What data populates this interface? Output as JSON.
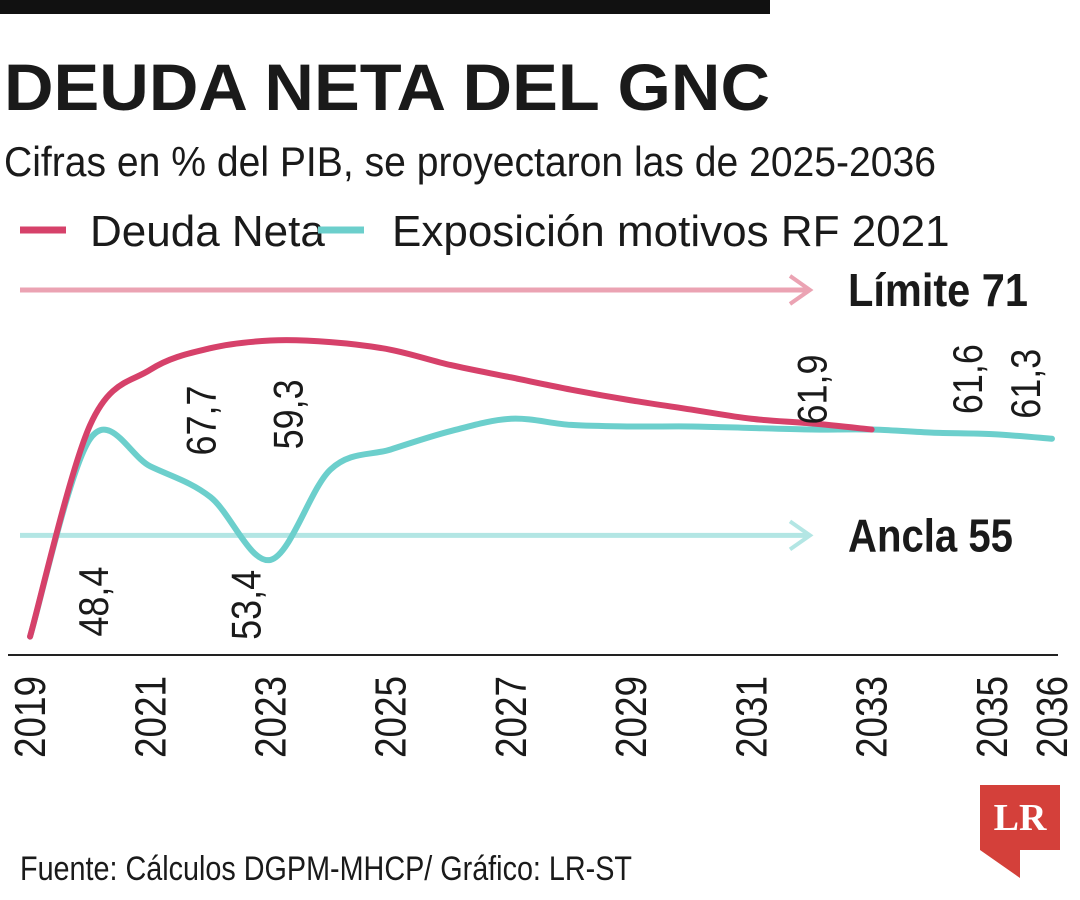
{
  "chart_data": {
    "type": "line",
    "title": "DEUDA NETA DEL GNC",
    "subtitle": "Cifras en % del PIB, se proyectaron las de 2025-2036",
    "x": [
      2019,
      2020,
      2021,
      2022,
      2023,
      2024,
      2025,
      2026,
      2027,
      2028,
      2029,
      2030,
      2031,
      2032,
      2033,
      2034,
      2035,
      2036
    ],
    "xlim": [
      2018.5,
      2036.3
    ],
    "xticks": [
      2019,
      2021,
      2023,
      2025,
      2027,
      2029,
      2031,
      2033,
      2035,
      2036
    ],
    "ylim": [
      47.2,
      72.3
    ],
    "series": [
      {
        "name": "Deuda Neta",
        "color": "#d6416a",
        "values": [
          48.4,
          62.2,
          65.8,
          67.2,
          67.7,
          67.6,
          67.1,
          66.1,
          65.3,
          64.5,
          63.8,
          63.2,
          62.6,
          62.3,
          61.9,
          null,
          null,
          null
        ],
        "value_labels": [
          "48,4",
          null,
          null,
          null,
          "67,7",
          null,
          null,
          null,
          null,
          null,
          null,
          null,
          null,
          null,
          "61,9",
          null,
          null,
          null
        ]
      },
      {
        "name": "Exposición motivos RF 2021",
        "color": "#6ccfcc",
        "values": [
          48.4,
          61.3,
          59.5,
          57.5,
          53.4,
          59.3,
          60.6,
          61.8,
          62.6,
          62.2,
          62.1,
          62.1,
          62.0,
          61.9,
          61.9,
          61.7,
          61.6,
          61.3
        ],
        "value_labels": [
          null,
          null,
          null,
          null,
          "53,4",
          "59,3",
          null,
          null,
          null,
          null,
          null,
          null,
          null,
          null,
          null,
          null,
          "61,6",
          "61,3"
        ]
      }
    ],
    "reference_lines": [
      {
        "label": "Límite 71",
        "value": 71,
        "color": "#eba3b3"
      },
      {
        "label": "Ancla 55",
        "value": 55,
        "color": "#b3e6e4"
      }
    ],
    "source": "Fuente: Cálculos DGPM-MHCP/ Gráfico: LR-ST",
    "logo": "LR"
  }
}
